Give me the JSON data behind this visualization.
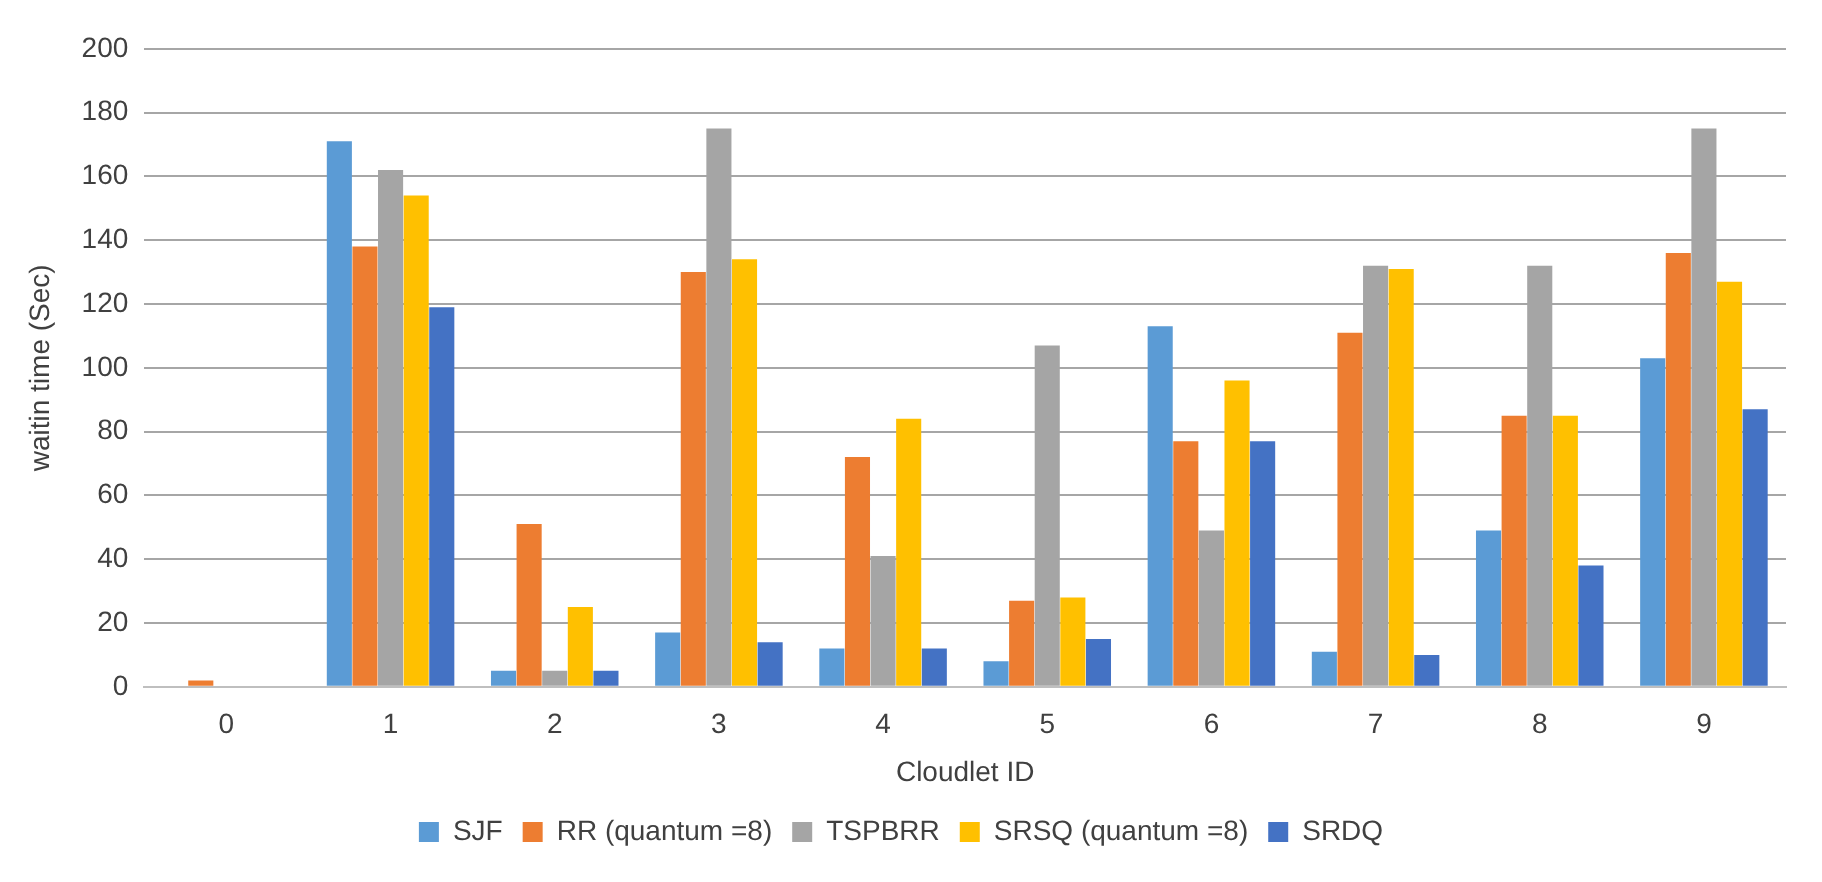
{
  "chart_data": {
    "type": "bar",
    "xlabel": "Cloudlet ID",
    "ylabel": "waitin time (Sec)",
    "categories": [
      "0",
      "1",
      "2",
      "3",
      "4",
      "5",
      "6",
      "7",
      "8",
      "9"
    ],
    "series": [
      {
        "name": "SJF",
        "color": "#5b9bd5",
        "values": [
          0,
          171,
          5,
          17,
          12,
          8,
          113,
          11,
          49,
          103
        ]
      },
      {
        "name": "RR (quantum =8)",
        "color": "#ed7d31",
        "values": [
          2,
          138,
          51,
          130,
          72,
          27,
          77,
          111,
          85,
          136
        ]
      },
      {
        "name": "TSPBRR",
        "color": "#a5a5a5",
        "values": [
          0,
          162,
          5,
          175,
          41,
          107,
          49,
          132,
          132,
          175
        ]
      },
      {
        "name": "SRSQ (quantum =8)",
        "color": "#ffc000",
        "values": [
          0,
          154,
          25,
          134,
          84,
          28,
          96,
          131,
          85,
          127
        ]
      },
      {
        "name": "SRDQ",
        "color": "#4472c4",
        "values": [
          0,
          119,
          5,
          14,
          12,
          15,
          77,
          10,
          38,
          87
        ]
      }
    ],
    "ylim": [
      0,
      200
    ],
    "yticks": [
      0,
      20,
      40,
      60,
      80,
      100,
      120,
      140,
      160,
      180,
      200
    ],
    "grid": "y",
    "legend": "bottom"
  }
}
